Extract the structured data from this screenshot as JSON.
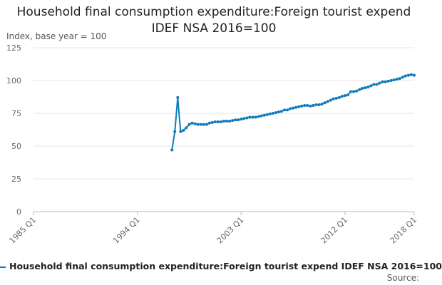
{
  "chart_data": {
    "type": "line",
    "title": "Household final consumption expenditure:Foreign tourist expend IDEF NSA 2016=100",
    "y_label": "Index, base year = 100",
    "source": "Source:",
    "categories": [
      "1985 Q1",
      "1985 Q2",
      "1985 Q3",
      "1985 Q4",
      "1986 Q1",
      "1986 Q2",
      "1986 Q3",
      "1986 Q4",
      "1987 Q1",
      "1987 Q2",
      "1987 Q3",
      "1987 Q4",
      "1988 Q1",
      "1988 Q2",
      "1988 Q3",
      "1988 Q4",
      "1989 Q1",
      "1989 Q2",
      "1989 Q3",
      "1989 Q4",
      "1990 Q1",
      "1990 Q2",
      "1990 Q3",
      "1990 Q4",
      "1991 Q1",
      "1991 Q2",
      "1991 Q3",
      "1991 Q4",
      "1992 Q1",
      "1992 Q2",
      "1992 Q3",
      "1992 Q4",
      "1993 Q1",
      "1993 Q2",
      "1993 Q3",
      "1993 Q4",
      "1994 Q1",
      "1994 Q2",
      "1994 Q3",
      "1994 Q4",
      "1995 Q1",
      "1995 Q2",
      "1995 Q3",
      "1995 Q4",
      "1996 Q1",
      "1996 Q2",
      "1996 Q3",
      "1996 Q4",
      "1997 Q1",
      "1997 Q2",
      "1997 Q3",
      "1997 Q4",
      "1998 Q1",
      "1998 Q2",
      "1998 Q3",
      "1998 Q4",
      "1999 Q1",
      "1999 Q2",
      "1999 Q3",
      "1999 Q4",
      "2000 Q1",
      "2000 Q2",
      "2000 Q3",
      "2000 Q4",
      "2001 Q1",
      "2001 Q2",
      "2001 Q3",
      "2001 Q4",
      "2002 Q1",
      "2002 Q2",
      "2002 Q3",
      "2002 Q4",
      "2003 Q1",
      "2003 Q2",
      "2003 Q3",
      "2003 Q4",
      "2004 Q1",
      "2004 Q2",
      "2004 Q3",
      "2004 Q4",
      "2005 Q1",
      "2005 Q2",
      "2005 Q3",
      "2005 Q4",
      "2006 Q1",
      "2006 Q2",
      "2006 Q3",
      "2006 Q4",
      "2007 Q1",
      "2007 Q2",
      "2007 Q3",
      "2007 Q4",
      "2008 Q1",
      "2008 Q2",
      "2008 Q3",
      "2008 Q4",
      "2009 Q1",
      "2009 Q2",
      "2009 Q3",
      "2009 Q4",
      "2010 Q1",
      "2010 Q2",
      "2010 Q3",
      "2010 Q4",
      "2011 Q1",
      "2011 Q2",
      "2011 Q3",
      "2011 Q4",
      "2012 Q1",
      "2012 Q2",
      "2012 Q3",
      "2012 Q4",
      "2013 Q1",
      "2013 Q2",
      "2013 Q3",
      "2013 Q4",
      "2014 Q1",
      "2014 Q2",
      "2014 Q3",
      "2014 Q4",
      "2015 Q1",
      "2015 Q2",
      "2015 Q3",
      "2015 Q4",
      "2016 Q1",
      "2016 Q2",
      "2016 Q3",
      "2016 Q4",
      "2017 Q1",
      "2017 Q2",
      "2017 Q3",
      "2017 Q4",
      "2018 Q1"
    ],
    "series": [
      {
        "name": "Household final consumption expenditure:Foreign tourist expend IDEF NSA 2016=100",
        "color": "#0f7bbd",
        "values": [
          null,
          null,
          null,
          null,
          null,
          null,
          null,
          null,
          null,
          null,
          null,
          null,
          null,
          null,
          null,
          null,
          null,
          null,
          null,
          null,
          null,
          null,
          null,
          null,
          null,
          null,
          null,
          null,
          null,
          null,
          null,
          null,
          null,
          null,
          null,
          null,
          null,
          null,
          null,
          null,
          null,
          null,
          null,
          null,
          null,
          null,
          null,
          null,
          47,
          61,
          87,
          61,
          62,
          64,
          66.5,
          67.5,
          67,
          66.5,
          66.5,
          66.5,
          66.5,
          67.5,
          68,
          68.5,
          68.5,
          68.5,
          69,
          69,
          69,
          69.5,
          70,
          70,
          70.5,
          71,
          71.5,
          72,
          72,
          72,
          72.5,
          73,
          73.5,
          74,
          74.5,
          75,
          75.5,
          76,
          76.5,
          77.5,
          77.5,
          78.5,
          79,
          79.5,
          80,
          80.5,
          81,
          81,
          80.5,
          81,
          81.5,
          81.5,
          82,
          83,
          84,
          85,
          86,
          86.5,
          87,
          88,
          88.5,
          89,
          91.5,
          91.5,
          92,
          93,
          94,
          94.5,
          95,
          96,
          97,
          97,
          98,
          99,
          99,
          99.5,
          100,
          100.5,
          101,
          101.5,
          102.5,
          103.5,
          104,
          104.5,
          104
        ]
      }
    ],
    "xticks": [
      "1985 Q1",
      "1994 Q1",
      "2003 Q1",
      "2012 Q1",
      "2018 Q1"
    ],
    "ylim": [
      0,
      125
    ],
    "yticks": [
      0,
      25,
      50,
      75,
      100,
      125
    ],
    "grid": true
  }
}
